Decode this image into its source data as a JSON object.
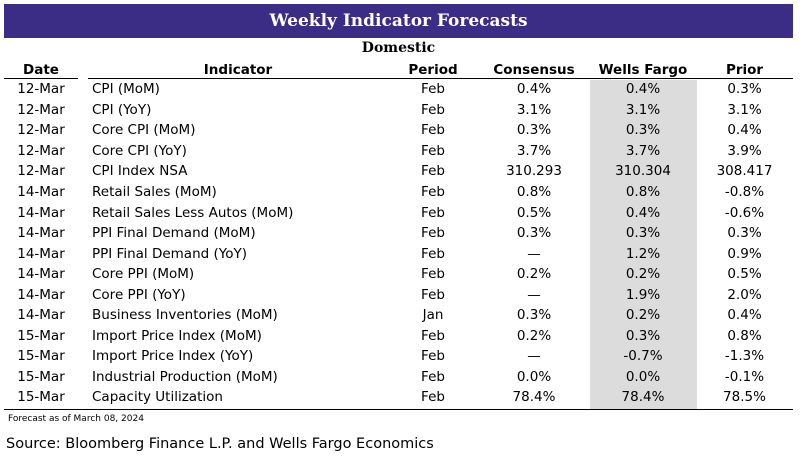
{
  "title": "Weekly Indicator Forecasts",
  "subtitle": "Domestic",
  "columns": {
    "date": "Date",
    "indicator": "Indicator",
    "period": "Period",
    "consensus": "Consensus",
    "wells_fargo": "Wells Fargo",
    "prior": "Prior"
  },
  "rows": [
    {
      "date": "12-Mar",
      "indicator": "CPI (MoM)",
      "period": "Feb",
      "consensus": "0.4%",
      "wells_fargo": "0.4%",
      "prior": "0.3%"
    },
    {
      "date": "12-Mar",
      "indicator": "CPI (YoY)",
      "period": "Feb",
      "consensus": "3.1%",
      "wells_fargo": "3.1%",
      "prior": "3.1%"
    },
    {
      "date": "12-Mar",
      "indicator": "Core CPI (MoM)",
      "period": "Feb",
      "consensus": "0.3%",
      "wells_fargo": "0.3%",
      "prior": "0.4%"
    },
    {
      "date": "12-Mar",
      "indicator": "Core CPI (YoY)",
      "period": "Feb",
      "consensus": "3.7%",
      "wells_fargo": "3.7%",
      "prior": "3.9%"
    },
    {
      "date": "12-Mar",
      "indicator": "CPI Index NSA",
      "period": "Feb",
      "consensus": "310.293",
      "wells_fargo": "310.304",
      "prior": "308.417"
    },
    {
      "date": "14-Mar",
      "indicator": "Retail Sales (MoM)",
      "period": "Feb",
      "consensus": "0.8%",
      "wells_fargo": "0.8%",
      "prior": "-0.8%"
    },
    {
      "date": "14-Mar",
      "indicator": "Retail Sales Less Autos (MoM)",
      "period": "Feb",
      "consensus": "0.5%",
      "wells_fargo": "0.4%",
      "prior": "-0.6%"
    },
    {
      "date": "14-Mar",
      "indicator": "PPI Final Demand (MoM)",
      "period": "Feb",
      "consensus": "0.3%",
      "wells_fargo": "0.3%",
      "prior": "0.3%"
    },
    {
      "date": "14-Mar",
      "indicator": "PPI Final Demand (YoY)",
      "period": "Feb",
      "consensus": "—",
      "wells_fargo": "1.2%",
      "prior": "0.9%"
    },
    {
      "date": "14-Mar",
      "indicator": "Core PPI (MoM)",
      "period": "Feb",
      "consensus": "0.2%",
      "wells_fargo": "0.2%",
      "prior": "0.5%"
    },
    {
      "date": "14-Mar",
      "indicator": "Core PPI (YoY)",
      "period": "Feb",
      "consensus": "—",
      "wells_fargo": "1.9%",
      "prior": "2.0%"
    },
    {
      "date": "14-Mar",
      "indicator": "Business Inventories (MoM)",
      "period": "Jan",
      "consensus": "0.3%",
      "wells_fargo": "0.2%",
      "prior": "0.4%"
    },
    {
      "date": "15-Mar",
      "indicator": "Import Price Index (MoM)",
      "period": "Feb",
      "consensus": "0.2%",
      "wells_fargo": "0.3%",
      "prior": "0.8%"
    },
    {
      "date": "15-Mar",
      "indicator": "Import Price Index (YoY)",
      "period": "Feb",
      "consensus": "—",
      "wells_fargo": "-0.7%",
      "prior": "-1.3%"
    },
    {
      "date": "15-Mar",
      "indicator": "Industrial Production (MoM)",
      "period": "Feb",
      "consensus": "0.0%",
      "wells_fargo": "0.0%",
      "prior": "-0.1%"
    },
    {
      "date": "15-Mar",
      "indicator": "Capacity Utilization",
      "period": "Feb",
      "consensus": "78.4%",
      "wells_fargo": "78.4%",
      "prior": "78.5%"
    }
  ],
  "forecast_note": "Forecast as of March 08, 2024",
  "source": "Source: Bloomberg Finance L.P. and Wells Fargo Economics",
  "colors": {
    "title_bar": "#3b2c86",
    "highlight_column": "#dcdcdc"
  }
}
